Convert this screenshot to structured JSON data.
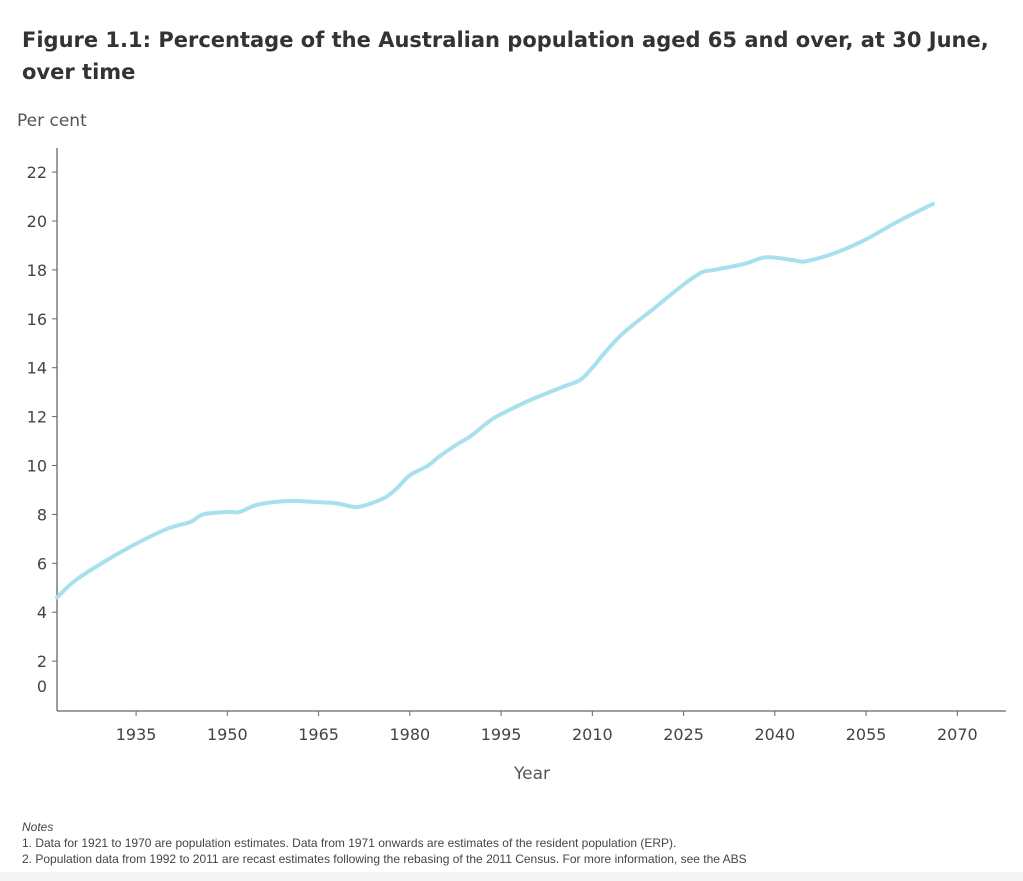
{
  "chart_data": {
    "type": "line",
    "title": "Figure 1.1: Percentage of the Australian population aged 65 and over, at 30 June, over time",
    "xlabel": "Year",
    "ylabel": "Per cent",
    "xlim": [
      1922,
      2078
    ],
    "ylim": [
      0,
      23
    ],
    "xticks": [
      1935,
      1950,
      1965,
      1980,
      1995,
      2010,
      2025,
      2040,
      2055,
      2070
    ],
    "yticks": [
      0,
      2,
      4,
      6,
      8,
      10,
      12,
      14,
      16,
      18,
      20,
      22
    ],
    "grid": false,
    "series": [
      {
        "name": "Aged 65 and over",
        "color": "#a8e0ee",
        "x": [
          1922,
          1925,
          1930,
          1935,
          1940,
          1944,
          1946,
          1950,
          1952,
          1955,
          1960,
          1965,
          1968,
          1971,
          1973,
          1976,
          1978,
          1980,
          1983,
          1985,
          1988,
          1990,
          1993,
          1995,
          2000,
          2005,
          2008,
          2010,
          2012,
          2015,
          2020,
          2025,
          2028,
          2030,
          2035,
          2038,
          2040,
          2043,
          2045,
          2050,
          2055,
          2060,
          2066
        ],
        "values": [
          4.6,
          5.3,
          6.1,
          6.8,
          7.4,
          7.7,
          8.0,
          8.1,
          8.1,
          8.4,
          8.55,
          8.5,
          8.45,
          8.3,
          8.4,
          8.7,
          9.1,
          9.6,
          10.0,
          10.4,
          10.9,
          11.2,
          11.8,
          12.1,
          12.7,
          13.2,
          13.5,
          14.0,
          14.6,
          15.4,
          16.4,
          17.4,
          17.9,
          18.0,
          18.25,
          18.5,
          18.5,
          18.4,
          18.35,
          18.7,
          19.25,
          19.95,
          20.7
        ]
      }
    ]
  },
  "notes": {
    "heading": "Notes",
    "lines": [
      "1. Data for 1921 to 1970 are population estimates. Data from 1971 onwards are estimates of the resident population (ERP).",
      "2.  Population data from 1992 to 2011 are recast estimates following the rebasing of the 2011 Census. For more information, see the ABS"
    ]
  }
}
